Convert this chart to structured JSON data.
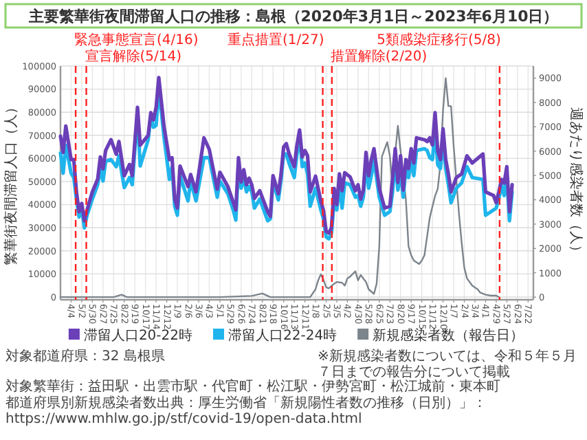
{
  "chart_data": {
    "type": "line",
    "title": "主要繁華街夜間滞留人口の推移：島根（2020年3月1日～2023年6月10日）",
    "ylabel": "繁華街夜間滞留人口（人）",
    "y2label": "週あたり感染者数（人）",
    "x": [
      "2020-03-07",
      "2020-03-14",
      "2020-03-21",
      "2020-04-04",
      "2020-04-11",
      "2020-04-18",
      "2020-04-25",
      "2020-05-02",
      "2020-05-09",
      "2020-05-16",
      "2020-05-30",
      "2020-06-13",
      "2020-06-20",
      "2020-06-27",
      "2020-07-04",
      "2020-07-18",
      "2020-08-01",
      "2020-08-08",
      "2020-08-22",
      "2020-09-05",
      "2020-09-12",
      "2020-09-26",
      "2020-10-03",
      "2020-10-24",
      "2020-10-31",
      "2020-11-07",
      "2020-11-14",
      "2020-11-21",
      "2020-12-05",
      "2020-12-19",
      "2020-12-26",
      "2021-01-02",
      "2021-01-09",
      "2021-01-16",
      "2021-02-06",
      "2021-02-13",
      "2021-02-27",
      "2021-03-20",
      "2021-04-03",
      "2021-04-24",
      "2021-05-01",
      "2021-05-22",
      "2021-06-05",
      "2021-06-12",
      "2021-06-19",
      "2021-06-26",
      "2021-07-03",
      "2021-07-10",
      "2021-07-17",
      "2021-07-24",
      "2021-07-31",
      "2021-08-14",
      "2021-09-04",
      "2021-09-11",
      "2021-09-18",
      "2021-10-02",
      "2021-10-09",
      "2021-10-16",
      "2021-10-23",
      "2021-10-30",
      "2021-11-13",
      "2021-11-20",
      "2021-11-27",
      "2021-12-04",
      "2021-12-11",
      "2021-12-18",
      "2021-12-25",
      "2022-01-08",
      "2022-01-22",
      "2022-01-29",
      "2022-02-05",
      "2022-02-12",
      "2022-02-19",
      "2022-02-26",
      "2022-03-05",
      "2022-03-12",
      "2022-03-19",
      "2022-03-26",
      "2022-04-09",
      "2022-04-23",
      "2022-04-30",
      "2022-05-07",
      "2022-05-14",
      "2022-05-21",
      "2022-05-28",
      "2022-06-04",
      "2022-06-11",
      "2022-06-25",
      "2022-07-09",
      "2022-07-23",
      "2022-07-30",
      "2022-08-06",
      "2022-08-13",
      "2022-08-20",
      "2022-08-27",
      "2022-09-03",
      "2022-09-10",
      "2022-09-17",
      "2022-09-24",
      "2022-10-01",
      "2022-10-22",
      "2022-10-29",
      "2022-11-05",
      "2022-11-12",
      "2022-11-19",
      "2022-11-26",
      "2022-12-03",
      "2022-12-10",
      "2022-12-17",
      "2022-12-24",
      "2022-12-31",
      "2023-01-14",
      "2023-01-28",
      "2023-02-11",
      "2023-02-25",
      "2023-03-25",
      "2023-04-01",
      "2023-04-22",
      "2023-04-29",
      "2023-05-06",
      "2023-05-13",
      "2023-05-20",
      "2023-05-27",
      "2023-06-03",
      "2023-06-10"
    ],
    "series": [
      {
        "name": "滞留人口20-22時",
        "color": "#6a3fb8",
        "values": [
          69600,
          62600,
          74000,
          59500,
          59500,
          45500,
          36900,
          40500,
          33000,
          37700,
          45500,
          51000,
          60600,
          55500,
          63400,
          68100,
          61800,
          67300,
          52500,
          57400,
          52500,
          82100,
          65700,
          70000,
          79800,
          76700,
          82100,
          95000,
          73500,
          59500,
          60300,
          42400,
          38500,
          56700,
          47800,
          53000,
          45500,
          68900,
          63900,
          46700,
          54000,
          47800,
          41100,
          37700,
          60300,
          49800,
          55100,
          48600,
          51400,
          48600,
          42700,
          46000,
          36900,
          34900,
          52500,
          44700,
          53000,
          65000,
          66400,
          62200,
          56400,
          65800,
          72300,
          60600,
          63400,
          61100,
          45500,
          52300,
          41600,
          37400,
          28400,
          27700,
          29900,
          47000,
          40000,
          53300,
          46000,
          53800,
          52000,
          46000,
          48600,
          42400,
          46300,
          62600,
          52500,
          59500,
          64200,
          47000,
          38500,
          39300,
          51400,
          64200,
          49600,
          61100,
          46300,
          59500,
          55600,
          64200,
          58000,
          68900,
          68100,
          67300,
          68900,
          65800,
          79800,
          63400,
          59500,
          72800,
          59500,
          53300,
          45500,
          51700,
          53300,
          61100,
          58000,
          61900,
          45500,
          43900,
          40800,
          45500,
          50900,
          49300,
          56400,
          36900,
          48600
        ]
      },
      {
        "name": "滞留人口22-24時",
        "color": "#1fb5ec",
        "values": [
          62300,
          53600,
          65700,
          53600,
          51700,
          42400,
          34600,
          38500,
          29900,
          35400,
          42400,
          48600,
          55600,
          50200,
          58700,
          59500,
          56400,
          61100,
          47400,
          51700,
          48600,
          79000,
          56700,
          68100,
          78000,
          73500,
          74300,
          90700,
          68900,
          50900,
          56400,
          39300,
          35400,
          52500,
          41600,
          50200,
          41600,
          60300,
          60300,
          43200,
          50200,
          44700,
          37700,
          33300,
          57200,
          47100,
          51700,
          45500,
          47800,
          45500,
          38500,
          42400,
          33000,
          33800,
          50200,
          42000,
          50200,
          61900,
          61900,
          58000,
          51700,
          61900,
          69600,
          56400,
          58000,
          53300,
          39300,
          47100,
          37700,
          33800,
          26000,
          25200,
          27600,
          41600,
          37700,
          48600,
          38500,
          49400,
          48600,
          43200,
          43900,
          39300,
          43200,
          58000,
          47100,
          52500,
          59500,
          43200,
          35400,
          37000,
          45500,
          59500,
          46300,
          54800,
          43200,
          55600,
          51700,
          58700,
          52500,
          63400,
          64200,
          63400,
          60300,
          59500,
          72000,
          57200,
          55600,
          68100,
          55600,
          48600,
          40800,
          47100,
          49400,
          56400,
          51700,
          50900,
          35400,
          37700,
          38500,
          42400,
          48600,
          43900,
          51700,
          33000,
          45500
        ]
      },
      {
        "name": "新規感染者数（報告日）",
        "color": "#7c848c",
        "axis": "y2",
        "x": [
          "2020-03-07",
          "2020-07-25",
          "2020-08-15",
          "2020-08-29",
          "2021-05-01",
          "2021-07-24",
          "2021-08-21",
          "2021-09-11",
          "2021-12-25",
          "2022-01-08",
          "2022-01-15",
          "2022-01-22",
          "2022-01-29",
          "2022-02-05",
          "2022-02-12",
          "2022-02-26",
          "2022-03-05",
          "2022-03-19",
          "2022-03-26",
          "2022-04-02",
          "2022-04-09",
          "2022-04-23",
          "2022-04-30",
          "2022-05-07",
          "2022-05-21",
          "2022-05-28",
          "2022-06-11",
          "2022-06-18",
          "2022-06-25",
          "2022-07-02",
          "2022-07-16",
          "2022-07-23",
          "2022-07-30",
          "2022-08-06",
          "2022-08-13",
          "2022-08-20",
          "2022-09-03",
          "2022-09-10",
          "2022-09-17",
          "2022-09-24",
          "2022-10-08",
          "2022-10-15",
          "2022-10-22",
          "2022-11-05",
          "2022-11-12",
          "2022-11-19",
          "2022-11-26",
          "2022-12-03",
          "2022-12-10",
          "2022-12-17",
          "2022-12-24",
          "2022-12-31",
          "2023-01-07",
          "2023-01-21",
          "2023-01-28",
          "2023-02-04",
          "2023-02-11",
          "2023-02-25",
          "2023-03-11",
          "2023-03-18",
          "2023-04-01",
          "2023-04-15",
          "2023-04-29",
          "2023-05-06"
        ],
        "values": [
          0,
          0,
          100,
          0,
          0,
          50,
          150,
          0,
          0,
          320,
          690,
          940,
          700,
          400,
          360,
          550,
          620,
          590,
          470,
          770,
          840,
          1060,
          690,
          910,
          620,
          320,
          130,
          550,
          2090,
          5780,
          6370,
          5780,
          4450,
          5930,
          7040,
          6020,
          4010,
          2090,
          1720,
          1500,
          1360,
          1500,
          1720,
          3270,
          3720,
          4160,
          4450,
          5460,
          7700,
          9000,
          7850,
          7850,
          6200,
          3420,
          2240,
          1210,
          770,
          470,
          320,
          180,
          100,
          60,
          60,
          0
        ]
      }
    ],
    "xlim": [
      "2020-03-07",
      "2023-08-05"
    ],
    "xticks": [
      {
        "value": "2020-04-04",
        "label": "4/4"
      },
      {
        "value": "2020-05-02",
        "label": "5/2"
      },
      {
        "value": "2020-05-30",
        "label": "5/30"
      },
      {
        "value": "2020-06-27",
        "label": "6/27"
      },
      {
        "value": "2020-07-25",
        "label": "7/25"
      },
      {
        "value": "2020-08-22",
        "label": "8/22"
      },
      {
        "value": "2020-09-19",
        "label": "9/19"
      },
      {
        "value": "2020-10-17",
        "label": "10/17"
      },
      {
        "value": "2020-11-14",
        "label": "11/14"
      },
      {
        "value": "2020-12-12",
        "label": "12/12"
      },
      {
        "value": "2021-01-09",
        "label": "1/9"
      },
      {
        "value": "2021-02-06",
        "label": "2/6"
      },
      {
        "value": "2021-03-06",
        "label": "3/6"
      },
      {
        "value": "2021-04-03",
        "label": "4/3"
      },
      {
        "value": "2021-05-01",
        "label": "5/1"
      },
      {
        "value": "2021-05-29",
        "label": "5/29"
      },
      {
        "value": "2021-06-26",
        "label": "6/26"
      },
      {
        "value": "2021-07-24",
        "label": "7/24"
      },
      {
        "value": "2021-08-21",
        "label": "8/21"
      },
      {
        "value": "2021-09-18",
        "label": "9/18"
      },
      {
        "value": "2021-10-16",
        "label": "10/16"
      },
      {
        "value": "2021-11-13",
        "label": "11/13"
      },
      {
        "value": "2021-12-11",
        "label": "12/11"
      },
      {
        "value": "2022-01-08",
        "label": "1/8"
      },
      {
        "value": "2022-02-05",
        "label": "2/5"
      },
      {
        "value": "2022-03-05",
        "label": "3/5"
      },
      {
        "value": "2022-04-02",
        "label": "4/2"
      },
      {
        "value": "2022-04-30",
        "label": "4/30"
      },
      {
        "value": "2022-05-28",
        "label": "5/28"
      },
      {
        "value": "2022-06-25",
        "label": "6/25"
      },
      {
        "value": "2022-07-23",
        "label": "7/23"
      },
      {
        "value": "2022-08-20",
        "label": "8/20"
      },
      {
        "value": "2022-09-17",
        "label": "9/17"
      },
      {
        "value": "2022-10-15",
        "label": "10/15"
      },
      {
        "value": "2022-11-12",
        "label": "11/12"
      },
      {
        "value": "2022-12-10",
        "label": "12/10"
      },
      {
        "value": "2023-01-07",
        "label": "1/7"
      },
      {
        "value": "2023-02-04",
        "label": "2/4"
      },
      {
        "value": "2023-03-04",
        "label": "3/4"
      },
      {
        "value": "2023-04-01",
        "label": "4/1"
      },
      {
        "value": "2023-04-29",
        "label": "4/29"
      },
      {
        "value": "2023-05-27",
        "label": "5/27"
      },
      {
        "value": "2023-06-24",
        "label": "6/24"
      },
      {
        "value": "2023-07-22",
        "label": "7/22"
      }
    ],
    "ylim": [
      -1200,
      100000
    ],
    "yticks": [
      0,
      10000,
      20000,
      30000,
      40000,
      50000,
      60000,
      70000,
      80000,
      90000,
      100000
    ],
    "y2lim": [
      -110,
      9500
    ],
    "y2ticks": [
      0,
      1000,
      2000,
      3000,
      4000,
      5000,
      6000,
      7000,
      8000,
      9000
    ],
    "ref_lines": [
      {
        "axis": "x",
        "value": "2020-04-16",
        "label": "緊急事態宣言(4/16)",
        "color": "#ff2020",
        "line_style": "dashed"
      },
      {
        "axis": "x",
        "value": "2020-05-14",
        "label": "宣言解除(5/14)",
        "color": "#ff2020",
        "line_style": "dashed"
      },
      {
        "axis": "x",
        "value": "2022-01-27",
        "label": "重点措置(1/27)",
        "color": "#ff2020",
        "line_style": "dashed"
      },
      {
        "axis": "x",
        "value": "2022-02-20",
        "label": "措置解除(2/20)",
        "color": "#ff2020",
        "line_style": "dashed"
      },
      {
        "axis": "x",
        "value": "2023-05-08",
        "label": "5類感染症移行(5/8)",
        "color": "#ff2020",
        "line_style": "dashed"
      }
    ],
    "grid": true,
    "legend": "bottom",
    "marker": "none",
    "line_style": "solid",
    "annotations": [
      "対象都道府県：32 島根県",
      "対象繁華街：益田駅・出雲市駅・代官町・松江駅・伊勢宮町・松江城前・東本町",
      "都道府県別新規感染者数出典：厚生労働省「新規陽性者数の推移（日別）」：\nhttps://www.mhlw.go.jp/stf/covid-19/open-data.html",
      "※新規感染者数については、令和５年５月７日までの報告分について掲載"
    ]
  }
}
